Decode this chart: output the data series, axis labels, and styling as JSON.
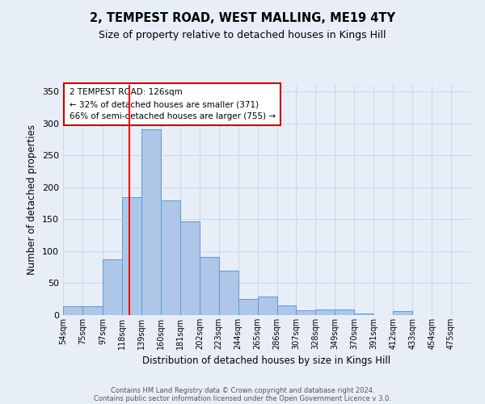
{
  "title": "2, TEMPEST ROAD, WEST MALLING, ME19 4TY",
  "subtitle": "Size of property relative to detached houses in Kings Hill",
  "xlabel": "Distribution of detached houses by size in Kings Hill",
  "ylabel": "Number of detached properties",
  "footer1": "Contains HM Land Registry data © Crown copyright and database right 2024.",
  "footer2": "Contains public sector information licensed under the Open Government Licence v 3.0.",
  "bin_labels": [
    "54sqm",
    "75sqm",
    "97sqm",
    "118sqm",
    "139sqm",
    "160sqm",
    "181sqm",
    "202sqm",
    "223sqm",
    "244sqm",
    "265sqm",
    "286sqm",
    "307sqm",
    "328sqm",
    "349sqm",
    "370sqm",
    "391sqm",
    "412sqm",
    "433sqm",
    "454sqm",
    "475sqm"
  ],
  "bar_heights": [
    14,
    14,
    87,
    185,
    290,
    180,
    147,
    91,
    69,
    25,
    29,
    15,
    7,
    9,
    9,
    3,
    0,
    6,
    0,
    0,
    0
  ],
  "bar_color": "#aec6e8",
  "bar_edge_color": "#5b9bd5",
  "red_line_x": 126,
  "bin_edges_numeric": [
    54,
    75,
    97,
    118,
    139,
    160,
    181,
    202,
    223,
    244,
    265,
    286,
    307,
    328,
    349,
    370,
    391,
    412,
    433,
    454,
    475,
    496
  ],
  "annotation_text": "2 TEMPEST ROAD: 126sqm\n← 32% of detached houses are smaller (371)\n66% of semi-detached houses are larger (755) →",
  "annotation_box_color": "#ffffff",
  "annotation_box_edge_color": "#cc0000",
  "ylim": [
    0,
    360
  ],
  "yticks": [
    0,
    50,
    100,
    150,
    200,
    250,
    300,
    350
  ],
  "grid_color": "#d0d8e8",
  "background_color": "#e8eef8"
}
